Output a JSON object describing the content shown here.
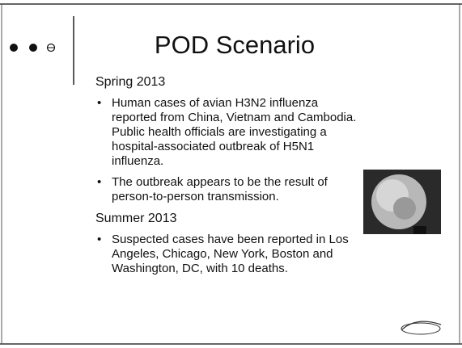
{
  "slide": {
    "title": "POD Scenario",
    "sections": [
      {
        "heading": "Spring 2013",
        "bullets": [
          [
            "Human cases of avian H3N2 influenza",
            "reported from China, Vietnam and Cambodia.",
            "Public health officials are investigating a",
            "hospital-associated outbreak of H5N1",
            "influenza."
          ],
          [
            "The outbreak appears to be the result of",
            "person-to-person transmission."
          ]
        ]
      },
      {
        "heading": "Summer 2013",
        "bullets": [
          [
            "Suspected cases have been reported in Los",
            "Angeles, Chicago, New York, Boston and",
            "Washington, DC, with 10 deaths."
          ]
        ]
      }
    ]
  }
}
